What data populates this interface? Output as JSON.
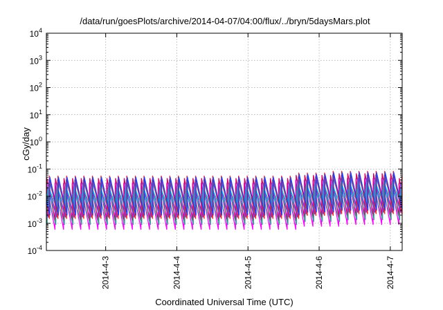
{
  "chart_data": {
    "type": "line",
    "title": "/data/run/goesPlots/archive/2014-04-07/04:00/flux/../bryn/5daysMars.plot",
    "xlabel": "Coordinated Universal Time (UTC)",
    "ylabel": "cGy/day",
    "y_scale": "log",
    "ylim": [
      0.0001,
      10000
    ],
    "y_ticks": [
      {
        "base": "10",
        "exp": "-4",
        "value": 0.0001
      },
      {
        "base": "10",
        "exp": "-3",
        "value": 0.001
      },
      {
        "base": "10",
        "exp": "-2",
        "value": 0.01
      },
      {
        "base": "10",
        "exp": "-1",
        "value": 0.1
      },
      {
        "base": "10",
        "exp": "0",
        "value": 1
      },
      {
        "base": "10",
        "exp": "1",
        "value": 10
      },
      {
        "base": "10",
        "exp": "2",
        "value": 100
      },
      {
        "base": "10",
        "exp": "3",
        "value": 1000
      },
      {
        "base": "10",
        "exp": "4",
        "value": 10000
      }
    ],
    "xlim": [
      "2014-04-02T04:00",
      "2014-04-07T04:00"
    ],
    "x_ticks": [
      {
        "label": "2014-4-3",
        "value": "2014-04-03T00:00"
      },
      {
        "label": "2014-4-4",
        "value": "2014-04-04T00:00"
      },
      {
        "label": "2014-4-5",
        "value": "2014-04-05T00:00"
      },
      {
        "label": "2014-4-6",
        "value": "2014-04-06T00:00"
      },
      {
        "label": "2014-4-7",
        "value": "2014-04-07T00:00"
      }
    ],
    "grid": true,
    "legend": "none",
    "cycle_hours": 2.9,
    "events": [
      {
        "start": "2014-04-05T16:48",
        "end": "2014-04-06T06:00",
        "peak_factor": 1.3
      },
      {
        "start": "2014-04-06T06:00",
        "end": "2014-04-07T04:00",
        "peak_factor": 1.5
      }
    ],
    "series": [
      {
        "color": "#ff00ff",
        "peak": 0.03,
        "trough": 0.0006
      },
      {
        "color": "#d80060",
        "peak": 0.045,
        "trough": 0.0012
      },
      {
        "color": "#3aa0a0",
        "peak": 0.012,
        "trough": 0.0009
      },
      {
        "color": "#00b0b0",
        "peak": 0.018,
        "trough": 0.002
      },
      {
        "color": "#8a2be2",
        "peak": 0.03,
        "trough": 0.0017
      },
      {
        "color": "#00cfe0",
        "peak": 0.022,
        "trough": 0.0032
      },
      {
        "color": "#2a7fd0",
        "peak": 0.04,
        "trough": 0.0028
      },
      {
        "color": "#ff2020",
        "peak": 0.055,
        "trough": 0.0015
      },
      {
        "color": "#1a3cff",
        "peak": 0.05,
        "trough": 0.002
      }
    ]
  }
}
